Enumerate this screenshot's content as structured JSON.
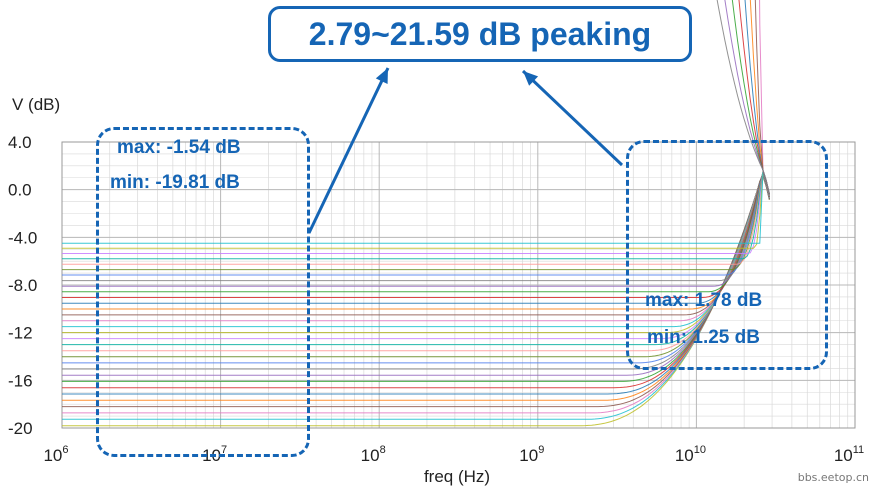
{
  "chart_data": {
    "type": "line",
    "title": "2.79~21.59 dB peaking",
    "xlabel": "freq (Hz)",
    "ylabel": "V (dB)",
    "x_scale": "log",
    "xlim": [
      1000000,
      100000000000
    ],
    "ylim": [
      -20,
      4
    ],
    "x_ticks": [
      {
        "base": "10",
        "exp": "6"
      },
      {
        "base": "10",
        "exp": "7"
      },
      {
        "base": "10",
        "exp": "8"
      },
      {
        "base": "10",
        "exp": "9"
      },
      {
        "base": "10",
        "exp": "10"
      },
      {
        "base": "10",
        "exp": "11"
      }
    ],
    "y_ticks": [
      "4.0",
      "0.0",
      "-4.0",
      "-8.0",
      "-12",
      "-16",
      "-20"
    ],
    "y_tick_values": [
      4,
      0,
      -4,
      -8,
      -12,
      -16,
      -20
    ],
    "grid": true,
    "series_count": 40,
    "low_freq_gain_max_db": -1.54,
    "low_freq_gain_min_db": -19.81,
    "peak_gain_max_db": 1.78,
    "peak_gain_min_db": 1.25,
    "peak_freq_hz": 26000000000,
    "sweep_end_hz": 30000000000,
    "annotations": {
      "left_max": "max:  -1.54 dB",
      "left_min": "min:  -19.81 dB",
      "right_max": "max:  1.78 dB",
      "right_min": "min:  1.25 dB"
    }
  },
  "watermark": "bbs.eetop.cn",
  "colors": {
    "accent": "#1565b5",
    "grid": "#d9d9d9",
    "palette": [
      "#7f7f7f",
      "#9467bd",
      "#2ca02c",
      "#d62728",
      "#1f77b4",
      "#ff7f0e",
      "#8c564b",
      "#e377c2",
      "#17becf",
      "#bcbd22",
      "#c77cff",
      "#00b3a1",
      "#ff9896",
      "#6b8e23",
      "#4b7bec"
    ]
  }
}
